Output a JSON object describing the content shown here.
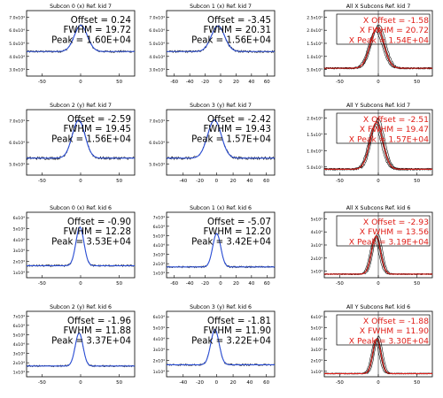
{
  "chart_data": [
    {
      "type": "line",
      "title": "Subcon 0 (x) Ref. kid 7",
      "style": "blue",
      "yticks": [
        "3.0x10⁴",
        "4.0x10⁴",
        "5.0x10⁴",
        "6.0x10⁴",
        "7.0x10⁴"
      ],
      "yrange": [
        30000,
        70000
      ],
      "xticks": [
        "-50",
        "0",
        "50"
      ],
      "xrange": [
        -70,
        70
      ],
      "annotation": [
        "Offset = 0.24",
        "FWHM = 19.72",
        "Peak = 1.60E+04"
      ],
      "curve": {
        "center": 0.24,
        "fwhm": 19.72,
        "base": 45000,
        "amp": 16000,
        "noise": 700
      }
    },
    {
      "type": "line",
      "title": "Subcon 1 (x) Ref. kid 7",
      "style": "blue",
      "yticks": [
        "3.0x10⁴",
        "4.0x10⁴",
        "5.0x10⁴",
        "6.0x10⁴",
        "7.0x10⁴"
      ],
      "yrange": [
        30000,
        70000
      ],
      "xticks": [
        "-60",
        "-40",
        "-20",
        "0",
        "20",
        "40",
        "60"
      ],
      "xrange": [
        -70,
        70
      ],
      "annotation": [
        "Offset = -3.45",
        "FWHM = 20.31",
        "Peak = 1.56E+04"
      ],
      "curve": {
        "center": -3.45,
        "fwhm": 20.31,
        "base": 45000,
        "amp": 15600,
        "noise": 700
      }
    },
    {
      "type": "line",
      "title": "All X Subcons Ref. kid 7",
      "style": "red",
      "yticks": [
        "5.0x10³",
        "1.0x10⁴",
        "1.5x10⁴",
        "2.0x10⁴",
        "2.5x10⁴"
      ],
      "yrange": [
        0,
        25000
      ],
      "xticks": [
        "-50",
        "0",
        "50"
      ],
      "xrange": [
        -70,
        70
      ],
      "annotation": [
        "X Offset = -1.58",
        "X FWHM = 20.72",
        "X Peak = 1.54E+04"
      ],
      "curve": {
        "center": -1.58,
        "fwhm": 20.72,
        "base": 3000,
        "amp": 15400,
        "noise": 300,
        "multi": true
      }
    },
    {
      "type": "line",
      "title": "Subcon 2 (y) Ref. kid 7",
      "style": "blue",
      "yticks": [
        "5.0x10⁴",
        "6.0x10⁴",
        "7.0x10⁴"
      ],
      "yrange": [
        45000,
        72000
      ],
      "xticks": [
        "-50",
        "0",
        "50"
      ],
      "xrange": [
        -70,
        70
      ],
      "annotation": [
        "Offset = -2.59",
        "FWHM = 19.45",
        "Peak = 1.56E+04"
      ],
      "curve": {
        "center": -2.59,
        "fwhm": 19.45,
        "base": 52000,
        "amp": 15600,
        "noise": 600
      }
    },
    {
      "type": "line",
      "title": "Subcon 3 (y) Ref. kid 7",
      "style": "blue",
      "yticks": [
        "5.0x10⁴",
        "6.0x10⁴",
        "7.0x10⁴"
      ],
      "yrange": [
        45000,
        72000
      ],
      "xticks": [
        "-40",
        "-20",
        "0",
        "20",
        "40",
        "60"
      ],
      "xrange": [
        -60,
        70
      ],
      "annotation": [
        "Offset = -2.42",
        "FWHM = 19.43",
        "Peak = 1.57E+04"
      ],
      "curve": {
        "center": -2.42,
        "fwhm": 19.43,
        "base": 52000,
        "amp": 15700,
        "noise": 600
      }
    },
    {
      "type": "line",
      "title": "All Y Subcons Ref. kid 7",
      "style": "red",
      "yticks": [
        "5.0x10³",
        "1.0x10⁴",
        "1.5x10⁴",
        "2.0x10⁴"
      ],
      "yrange": [
        0,
        22000
      ],
      "xticks": [
        "-50",
        "0",
        "50"
      ],
      "xrange": [
        -70,
        70
      ],
      "annotation": [
        "X Offset = -2.51",
        "X FWHM = 19.47",
        "X Peak = 1.57E+04"
      ],
      "curve": {
        "center": -2.51,
        "fwhm": 19.47,
        "base": 2000,
        "amp": 15700,
        "noise": 300,
        "multi": true
      }
    },
    {
      "type": "line",
      "title": "Subcon 0 (x) Ref. kid 6",
      "style": "blue",
      "yticks": [
        "1x10⁴",
        "2x10⁴",
        "3x10⁴",
        "4x10⁴",
        "5x10⁴",
        "6x10⁴"
      ],
      "yrange": [
        5000,
        65000
      ],
      "xticks": [
        "-50",
        "0",
        "50"
      ],
      "xrange": [
        -70,
        70
      ],
      "annotation": [
        "Offset = -0.90",
        "FWHM = 12.28",
        "Peak = 3.53E+04"
      ],
      "curve": {
        "center": -0.9,
        "fwhm": 12.28,
        "base": 16000,
        "amp": 35300,
        "noise": 900
      }
    },
    {
      "type": "line",
      "title": "Subcon 1 (x) Ref. kid 6",
      "style": "blue",
      "yticks": [
        "1x10⁴",
        "2x10⁴",
        "3x10⁴",
        "4x10⁴",
        "5x10⁴",
        "6x10⁴",
        "7x10⁴"
      ],
      "yrange": [
        5000,
        72000
      ],
      "xticks": [
        "-60",
        "-40",
        "-20",
        "0",
        "20",
        "40",
        "60"
      ],
      "xrange": [
        -70,
        70
      ],
      "annotation": [
        "Offset = -5.07",
        "FWHM = 12.20",
        "Peak = 3.42E+04"
      ],
      "curve": {
        "center": -5.07,
        "fwhm": 12.2,
        "base": 16000,
        "amp": 34200,
        "noise": 900
      }
    },
    {
      "type": "line",
      "title": "All X Subcons Ref. kid 6",
      "style": "red",
      "yticks": [
        "1x10⁴",
        "2x10⁴",
        "3x10⁴",
        "4x10⁴",
        "5x10⁴"
      ],
      "yrange": [
        0,
        55000
      ],
      "xticks": [
        "-50",
        "0",
        "50"
      ],
      "xrange": [
        -70,
        70
      ],
      "annotation": [
        "X Offset = -2.93",
        "X FWHM = 13.56",
        "X Peak = 3.19E+04"
      ],
      "curve": {
        "center": -2.93,
        "fwhm": 13.56,
        "base": 3000,
        "amp": 31900,
        "noise": 500,
        "multi": true
      }
    },
    {
      "type": "line",
      "title": "Subcon 2 (y) Ref. kid 6",
      "style": "blue",
      "yticks": [
        "1x10⁴",
        "2x10⁴",
        "3x10⁴",
        "4x10⁴",
        "5x10⁴",
        "6x10⁴",
        "7x10⁴"
      ],
      "yrange": [
        5000,
        72000
      ],
      "xticks": [
        "-50",
        "0",
        "50"
      ],
      "xrange": [
        -70,
        70
      ],
      "annotation": [
        "Offset = -1.96",
        "FWHM = 11.88",
        "Peak = 3.37E+04"
      ],
      "curve": {
        "center": -1.96,
        "fwhm": 11.88,
        "base": 16000,
        "amp": 33700,
        "noise": 900
      }
    },
    {
      "type": "line",
      "title": "Subcon 3 (y) Ref. kid 6",
      "style": "blue",
      "yticks": [
        "1x10⁴",
        "2x10⁴",
        "3x10⁴",
        "4x10⁴",
        "5x10⁴",
        "6x10⁴"
      ],
      "yrange": [
        5000,
        65000
      ],
      "xticks": [
        "-40",
        "-20",
        "0",
        "20",
        "40",
        "60"
      ],
      "xrange": [
        -60,
        70
      ],
      "annotation": [
        "Offset = -1.81",
        "FWHM = 11.90",
        "Peak = 3.22E+04"
      ],
      "curve": {
        "center": -1.81,
        "fwhm": 11.9,
        "base": 16000,
        "amp": 32200,
        "noise": 900
      }
    },
    {
      "type": "line",
      "title": "All Y Subcons Ref. kid 6",
      "style": "red",
      "yticks": [
        "1x10⁴",
        "2x10⁴",
        "3x10⁴",
        "4x10⁴",
        "5x10⁴",
        "6x10⁴"
      ],
      "yrange": [
        0,
        62000
      ],
      "xticks": [
        "-50",
        "0",
        "50"
      ],
      "xrange": [
        -70,
        70
      ],
      "annotation": [
        "X Offset = -1.88",
        "X FWHM = 11.90",
        "X Peak = 3.30E+04"
      ],
      "curve": {
        "center": -1.88,
        "fwhm": 11.9,
        "base": 3000,
        "amp": 33000,
        "noise": 500,
        "multi": true
      }
    }
  ],
  "colors": {
    "blue": "#2b4fd8",
    "red": "#e0201a",
    "data": "#000000",
    "axis": "#000000"
  }
}
